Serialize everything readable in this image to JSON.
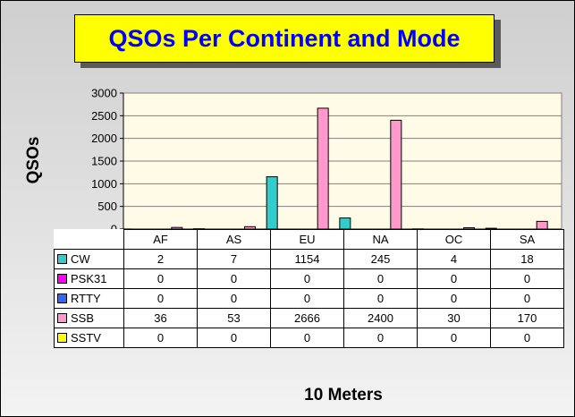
{
  "chart_data": {
    "type": "bar",
    "title": "QSOs Per Continent and Mode",
    "xlabel": "10 Meters",
    "ylabel": "QSOs",
    "ylim": [
      0,
      3000
    ],
    "yticks": [
      0,
      500,
      1000,
      1500,
      2000,
      2500,
      3000
    ],
    "categories": [
      "AF",
      "AS",
      "EU",
      "NA",
      "OC",
      "SA"
    ],
    "grid": true,
    "legend": "table",
    "series": [
      {
        "name": "CW",
        "color": "#33cccc",
        "values": [
          2,
          7,
          1154,
          245,
          4,
          18
        ]
      },
      {
        "name": "PSK31",
        "color": "#ff00ff",
        "values": [
          0,
          0,
          0,
          0,
          0,
          0
        ]
      },
      {
        "name": "RTTY",
        "color": "#3366ff",
        "values": [
          0,
          0,
          0,
          0,
          0,
          0
        ]
      },
      {
        "name": "SSB",
        "color": "#ff99cc",
        "values": [
          36,
          53,
          2666,
          2400,
          30,
          170
        ]
      },
      {
        "name": "SSTV",
        "color": "#ffff00",
        "values": [
          0,
          0,
          0,
          0,
          0,
          0
        ]
      }
    ],
    "plot_background": "#fffbe6"
  }
}
